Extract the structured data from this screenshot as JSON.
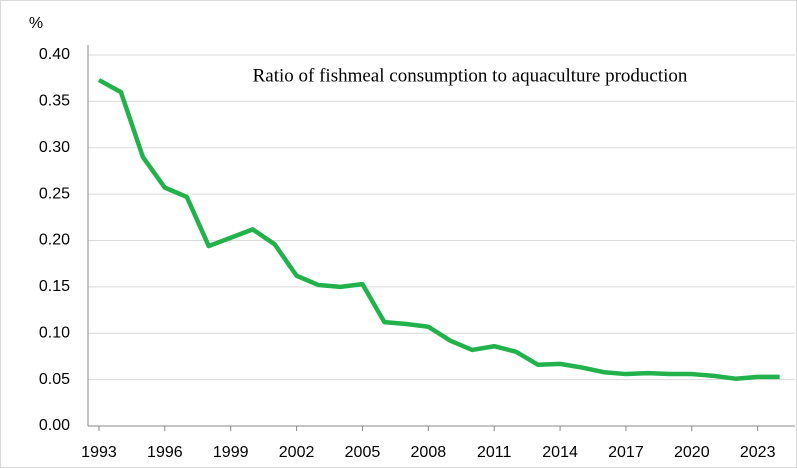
{
  "chart_data": {
    "type": "line",
    "title": "Ratio of fishmeal consumption to aquaculture production",
    "y_label": "%",
    "x": [
      1993,
      1994,
      1995,
      1996,
      1997,
      1998,
      1999,
      2000,
      2001,
      2002,
      2003,
      2004,
      2005,
      2006,
      2007,
      2008,
      2009,
      2010,
      2011,
      2012,
      2013,
      2014,
      2015,
      2016,
      2017,
      2018,
      2019,
      2020,
      2021,
      2022,
      2023,
      2024
    ],
    "series": [
      {
        "name": "Ratio of fishmeal consumption to aquaculture production",
        "color": "#22b24c",
        "values": [
          0.373,
          0.36,
          0.29,
          0.257,
          0.247,
          0.194,
          0.203,
          0.212,
          0.196,
          0.162,
          0.152,
          0.15,
          0.153,
          0.112,
          0.11,
          0.107,
          0.092,
          0.082,
          0.086,
          0.08,
          0.066,
          0.067,
          0.063,
          0.058,
          0.056,
          0.057,
          0.056,
          0.056,
          0.054,
          0.051,
          0.053,
          0.053
        ]
      }
    ],
    "xlim": [
      1992.5,
      2024.7
    ],
    "xticks": [
      1993,
      1996,
      1999,
      2002,
      2005,
      2008,
      2011,
      2014,
      2017,
      2020,
      2023
    ],
    "ylim": [
      0,
      0.4
    ],
    "yticks": [
      {
        "value": 0,
        "label": "0.00"
      },
      0.05,
      {
        "value": 0.1,
        "label": "0.10"
      },
      0.15,
      {
        "value": 0.2,
        "label": "0.20"
      },
      0.25,
      {
        "value": 0.3,
        "label": "0.30"
      },
      0.35,
      {
        "value": 0.4,
        "label": "0.40"
      }
    ],
    "grid": true
  }
}
